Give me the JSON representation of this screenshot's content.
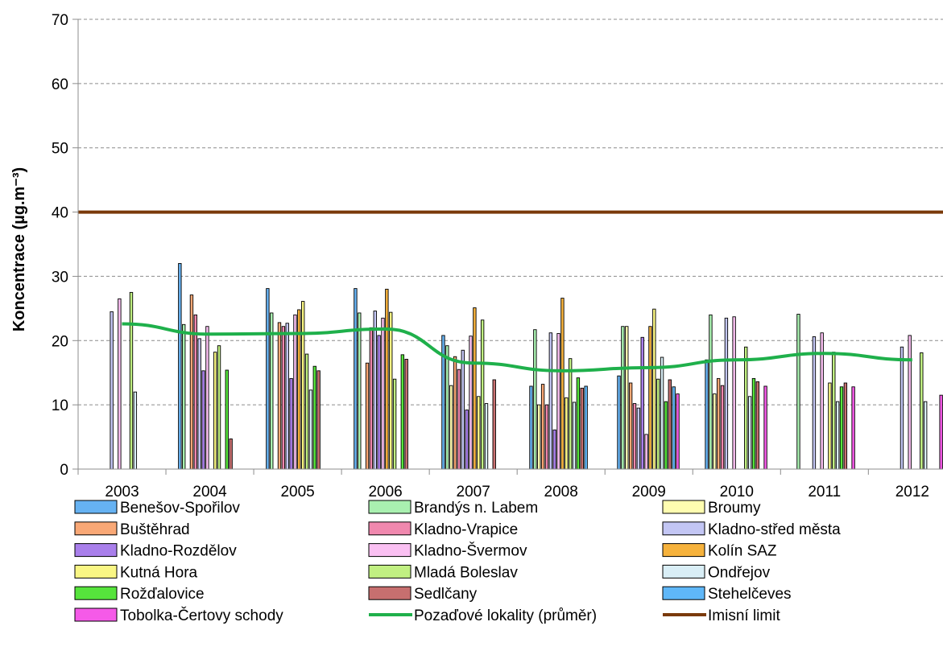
{
  "chart_data": {
    "type": "bar",
    "title": "",
    "xlabel": "",
    "ylabel": "Koncentrace (µg.m⁻³)",
    "ylim": [
      0,
      70
    ],
    "yticks": [
      0,
      10,
      20,
      30,
      40,
      50,
      60,
      70
    ],
    "grid": true,
    "legend_position": "bottom",
    "categories": [
      "2003",
      "2004",
      "2005",
      "2006",
      "2007",
      "2008",
      "2009",
      "2010",
      "2011",
      "2012"
    ],
    "series": [
      {
        "name": "Benešov-Spořilov",
        "color": "#66B2F2",
        "values": [
          null,
          32.0,
          28.1,
          28.1,
          20.8,
          12.9,
          14.5,
          17.0,
          null,
          null
        ]
      },
      {
        "name": "Brandýs n. Labem",
        "color": "#A9F0B0",
        "values": [
          null,
          22.5,
          24.3,
          24.3,
          19.2,
          21.7,
          22.2,
          24.0,
          24.1,
          null
        ]
      },
      {
        "name": "Broumy",
        "color": "#FFFDB0",
        "values": [
          null,
          null,
          null,
          null,
          13.0,
          10.0,
          22.2,
          11.7,
          null,
          null
        ]
      },
      {
        "name": "Buštěhrad",
        "color": "#F9A876",
        "values": [
          null,
          27.1,
          22.8,
          16.5,
          17.5,
          13.2,
          13.4,
          14.1,
          null,
          null
        ]
      },
      {
        "name": "Kladno-Vrapice",
        "color": "#F088AE",
        "values": [
          null,
          24.0,
          22.2,
          22.0,
          15.5,
          10.0,
          10.2,
          13.0,
          null,
          null
        ]
      },
      {
        "name": "Kladno-střed města",
        "color": "#C3C6F4",
        "values": [
          24.5,
          20.3,
          22.7,
          24.6,
          18.5,
          21.2,
          9.5,
          23.5,
          20.6,
          19.0
        ]
      },
      {
        "name": "Kladno-Rozdělov",
        "color": "#A97FEB",
        "values": [
          null,
          15.3,
          14.1,
          20.8,
          9.2,
          6.1,
          20.5,
          null,
          null,
          null
        ]
      },
      {
        "name": "Kladno-Švermov",
        "color": "#FAC0F2",
        "values": [
          26.5,
          22.2,
          24.0,
          23.5,
          20.7,
          21.1,
          5.4,
          23.7,
          21.2,
          20.8
        ]
      },
      {
        "name": "Kolín SAZ",
        "color": "#F6B23C",
        "values": [
          null,
          null,
          24.8,
          28.0,
          25.1,
          26.6,
          22.2,
          null,
          null,
          null
        ]
      },
      {
        "name": "Kutná Hora",
        "color": "#F9F684",
        "values": [
          null,
          18.2,
          26.1,
          24.4,
          11.3,
          11.1,
          24.9,
          null,
          13.4,
          null
        ]
      },
      {
        "name": "Mladá Boleslav",
        "color": "#C1F082",
        "values": [
          27.5,
          19.2,
          17.9,
          14.0,
          23.2,
          17.2,
          14.0,
          19.0,
          18.2,
          18.1
        ]
      },
      {
        "name": "Ondřejov",
        "color": "#D9EEF6",
        "values": [
          12.0,
          null,
          12.3,
          null,
          10.2,
          10.4,
          17.4,
          11.3,
          10.5,
          10.5
        ]
      },
      {
        "name": "Rožďalovice",
        "color": "#56E43C",
        "values": [
          null,
          15.4,
          16.0,
          17.8,
          null,
          14.2,
          10.5,
          14.1,
          12.8,
          null
        ]
      },
      {
        "name": "Sedlčany",
        "color": "#C76F6F",
        "values": [
          null,
          4.7,
          15.3,
          17.1,
          13.9,
          12.6,
          13.9,
          13.6,
          13.4,
          null
        ]
      },
      {
        "name": "Stehelčeves",
        "color": "#5FB7F8",
        "values": [
          null,
          null,
          null,
          null,
          null,
          12.9,
          12.8,
          null,
          null,
          null
        ]
      },
      {
        "name": "Tobolka-Čertovy schody",
        "color": "#F55AE8",
        "values": [
          null,
          null,
          null,
          null,
          null,
          null,
          11.7,
          12.9,
          12.8,
          11.5
        ]
      }
    ],
    "lines": [
      {
        "name": "Pozaďové lokality (průměr)",
        "color": "#1FB04B",
        "values": [
          22.6,
          21.0,
          21.1,
          21.8,
          16.5,
          15.3,
          15.8,
          17.0,
          18.0,
          17.0
        ]
      },
      {
        "name": "Imisní limit",
        "color": "#7A3A0A",
        "values": [
          40,
          40,
          40,
          40,
          40,
          40,
          40,
          40,
          40,
          40
        ]
      }
    ]
  }
}
